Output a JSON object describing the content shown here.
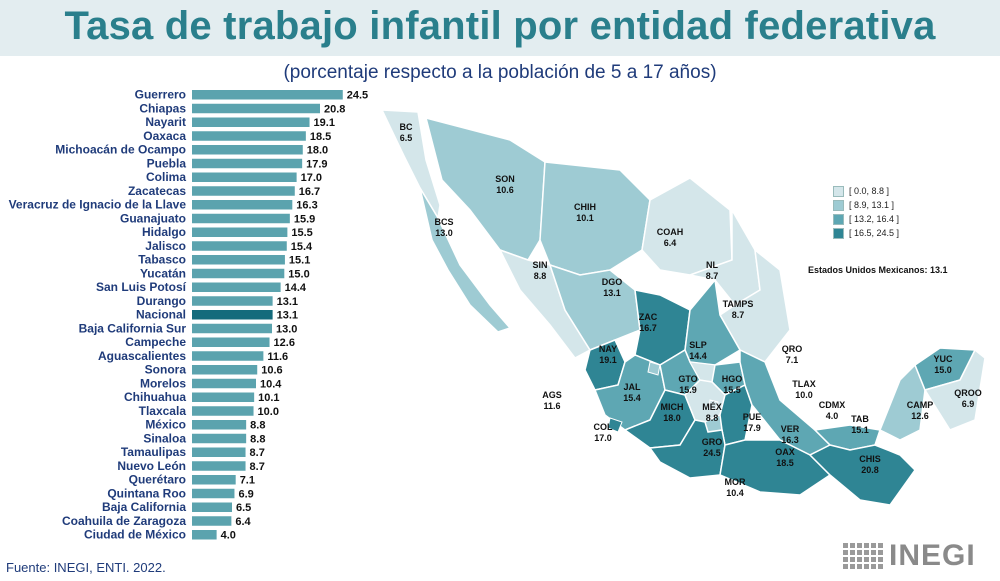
{
  "title": "Tasa de trabajo infantil por entidad federativa",
  "subtitle": "(porcentaje respecto a la población de 5 a 17 años)",
  "source": "Fuente:  INEGI, ENTI. 2022.",
  "logo": "INEGI",
  "colors": {
    "bar": "#5ba3ae",
    "bar_national": "#146b7c",
    "class1": "#d4e6ea",
    "class2": "#9ecbd3",
    "class3": "#5ea7b3",
    "class4": "#2f8594"
  },
  "national_note": "Estados Unidos Mexicanos: 13.1",
  "legend": [
    "[ 0.0, 8.8 ]",
    "[ 8.9, 13.1 ]",
    "[ 13.2, 16.4 ]",
    "[ 16.5, 24.5 ]"
  ],
  "chart_data": [
    {
      "type": "bar",
      "orientation": "horizontal",
      "title": "",
      "xlabel": "",
      "ylabel": "",
      "xlim": [
        0,
        26
      ],
      "grid": false,
      "highlight": "Nacional",
      "categories": [
        "Guerrero",
        "Chiapas",
        "Nayarit",
        "Oaxaca",
        "Michoacán de Ocampo",
        "Puebla",
        "Colima",
        "Zacatecas",
        "Veracruz de Ignacio de la Llave",
        "Guanajuato",
        "Hidalgo",
        "Jalisco",
        "Tabasco",
        "Yucatán",
        "San Luis Potosí",
        "Durango",
        "Nacional",
        "Baja California Sur",
        "Campeche",
        "Aguascalientes",
        "Sonora",
        "Morelos",
        "Chihuahua",
        "Tlaxcala",
        "México",
        "Sinaloa",
        "Tamaulipas",
        "Nuevo León",
        "Querétaro",
        "Quintana Roo",
        "Baja California",
        "Coahuila de Zaragoza",
        "Ciudad de México"
      ],
      "values": [
        24.5,
        20.8,
        19.1,
        18.5,
        18.0,
        17.9,
        17.0,
        16.7,
        16.3,
        15.9,
        15.5,
        15.4,
        15.1,
        15.0,
        14.4,
        13.1,
        13.1,
        13.0,
        12.6,
        11.6,
        10.6,
        10.4,
        10.1,
        10.0,
        8.8,
        8.8,
        8.7,
        8.7,
        7.1,
        6.9,
        6.5,
        6.4,
        4.0
      ]
    },
    {
      "type": "choropleth",
      "title": "",
      "legend_position": "right",
      "classes": [
        "[ 0.0, 8.8 ]",
        "[ 8.9, 13.1 ]",
        "[ 13.2, 16.4 ]",
        "[ 16.5, 24.5 ]"
      ],
      "states": [
        {
          "code": "BC",
          "value": "6.5"
        },
        {
          "code": "BCS",
          "value": "13.0"
        },
        {
          "code": "SON",
          "value": "10.6"
        },
        {
          "code": "CHIH",
          "value": "10.1"
        },
        {
          "code": "COAH",
          "value": "6.4"
        },
        {
          "code": "NL",
          "value": "8.7"
        },
        {
          "code": "SIN",
          "value": "8.8"
        },
        {
          "code": "DGO",
          "value": "13.1"
        },
        {
          "code": "TAMPS",
          "value": "8.7"
        },
        {
          "code": "ZAC",
          "value": "16.7"
        },
        {
          "code": "NAY",
          "value": "19.1"
        },
        {
          "code": "SLP",
          "value": "14.4"
        },
        {
          "code": "QRO",
          "value": "7.1"
        },
        {
          "code": "AGS",
          "value": "11.6"
        },
        {
          "code": "GTO",
          "value": "15.9"
        },
        {
          "code": "HGO",
          "value": "15.5"
        },
        {
          "code": "JAL",
          "value": "15.4"
        },
        {
          "code": "TLAX",
          "value": "10.0"
        },
        {
          "code": "CDMX",
          "value": "4.0"
        },
        {
          "code": "MÉX",
          "value": "8.8"
        },
        {
          "code": "PUE",
          "value": "17.9"
        },
        {
          "code": "MICH",
          "value": "18.0"
        },
        {
          "code": "COL",
          "value": "17.0"
        },
        {
          "code": "VER",
          "value": "16.3"
        },
        {
          "code": "TAB",
          "value": "15.1"
        },
        {
          "code": "CAMP",
          "value": "12.6"
        },
        {
          "code": "YUC",
          "value": "15.0"
        },
        {
          "code": "QROO",
          "value": "6.9"
        },
        {
          "code": "GRO",
          "value": "24.5"
        },
        {
          "code": "OAX",
          "value": "18.5"
        },
        {
          "code": "CHIS",
          "value": "20.8"
        },
        {
          "code": "MOR",
          "value": "10.4"
        }
      ]
    }
  ]
}
